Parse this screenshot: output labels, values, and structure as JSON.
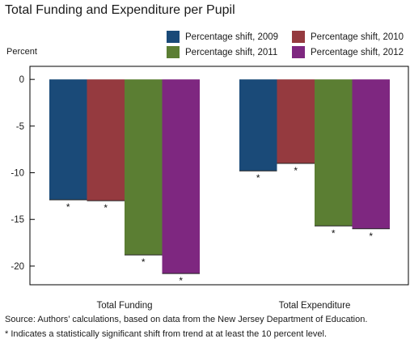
{
  "chart_data": {
    "type": "bar",
    "title": "Total Funding and Expenditure per Pupil",
    "ylabel": "Percent",
    "categories": [
      "Total Funding",
      "Total Expenditure"
    ],
    "series": [
      {
        "name": "Percentage shift, 2009",
        "color": "#1a4a78",
        "values": [
          -12.9,
          -9.8
        ]
      },
      {
        "name": "Percentage shift, 2010",
        "color": "#953a3f",
        "values": [
          -13.0,
          -9.0
        ]
      },
      {
        "name": "Percentage shift, 2011",
        "color": "#5b7e33",
        "values": [
          -18.8,
          -15.7
        ]
      },
      {
        "name": "Percentage shift, 2012",
        "color": "#7e2780",
        "values": [
          -20.8,
          -16.0
        ]
      }
    ],
    "significance_marker": "*",
    "significant": [
      [
        true,
        true
      ],
      [
        true,
        true
      ],
      [
        true,
        true
      ],
      [
        true,
        true
      ]
    ],
    "ylim": [
      -22,
      1.4
    ],
    "yticks": [
      0,
      -5,
      -10,
      -15,
      -20
    ],
    "legend_position": "top-right",
    "grid": false
  },
  "notes": {
    "source": "Source: Authors’ calculations, based on data from the New Jersey Department of Education.",
    "footnote": "* Indicates a statistically significant shift from trend at at least the 10 percent level."
  }
}
